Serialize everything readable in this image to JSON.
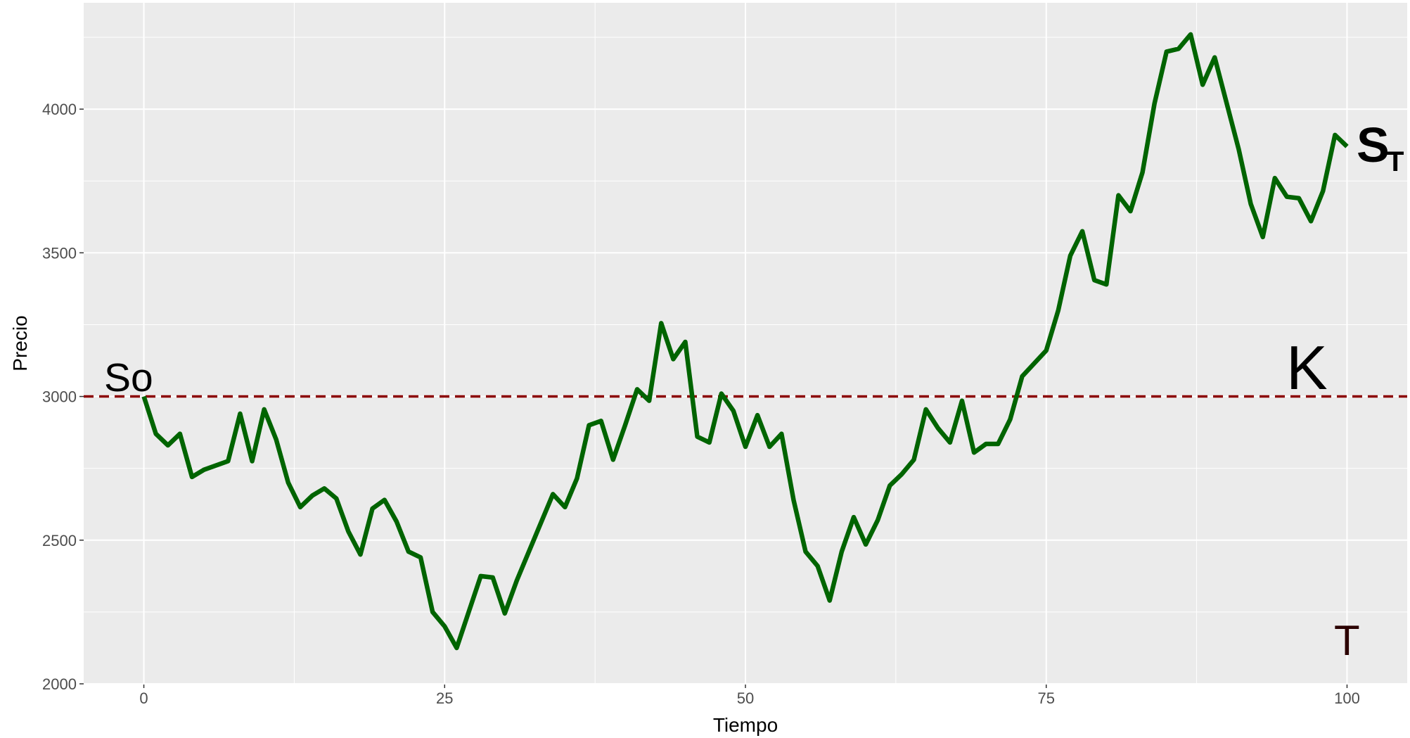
{
  "chart_data": {
    "type": "line",
    "x_label": "Tiempo",
    "y_label": "Precio",
    "xlim": [
      -5,
      105
    ],
    "xticks": [
      0,
      25,
      50,
      75,
      100
    ],
    "ylim": [
      2000,
      4370
    ],
    "yticks": [
      2000,
      2500,
      3000,
      3500,
      4000
    ],
    "grid": true,
    "x": [
      0,
      1,
      2,
      3,
      4,
      5,
      6,
      7,
      8,
      9,
      10,
      11,
      12,
      13,
      14,
      15,
      16,
      17,
      18,
      19,
      20,
      21,
      22,
      23,
      24,
      25,
      26,
      27,
      28,
      29,
      30,
      31,
      32,
      33,
      34,
      35,
      36,
      37,
      38,
      39,
      40,
      41,
      42,
      43,
      44,
      45,
      46,
      47,
      48,
      49,
      50,
      51,
      52,
      53,
      54,
      55,
      56,
      57,
      58,
      59,
      60,
      61,
      62,
      63,
      64,
      65,
      66,
      67,
      68,
      69,
      70,
      71,
      72,
      73,
      74,
      75,
      76,
      77,
      78,
      79,
      80,
      81,
      82,
      83,
      84,
      85,
      86,
      87,
      88,
      89,
      90,
      91,
      92,
      93,
      94,
      95,
      96,
      97,
      98,
      99,
      100
    ],
    "series": [
      {
        "color": "#006400",
        "values": [
          3000,
          2870,
          2830,
          2870,
          2720,
          2745,
          2760,
          2775,
          2940,
          2775,
          2955,
          2850,
          2700,
          2615,
          2655,
          2680,
          2645,
          2530,
          2450,
          2610,
          2640,
          2565,
          2460,
          2440,
          2250,
          2200,
          2125,
          2250,
          2375,
          2370,
          2245,
          2360,
          2460,
          2560,
          2660,
          2615,
          2715,
          2900,
          2915,
          2780,
          2900,
          3025,
          2985,
          3255,
          3130,
          3190,
          2860,
          2840,
          3010,
          2950,
          2825,
          2935,
          2825,
          2870,
          2640,
          2460,
          2410,
          2290,
          2460,
          2580,
          2485,
          2570,
          2690,
          2730,
          2780,
          2955,
          2890,
          2840,
          2985,
          2805,
          2835,
          2835,
          2920,
          3070,
          3115,
          3160,
          3300,
          3490,
          3575,
          3405,
          3390,
          3700,
          3645,
          3780,
          4020,
          4200,
          4210,
          4260,
          4085,
          4180,
          4020,
          3860,
          3670,
          3555,
          3760,
          3695,
          3690,
          3610,
          3715,
          3910,
          3870
        ]
      }
    ],
    "hline": {
      "value": 3000,
      "color": "#8b0000"
    },
    "annotations": [
      {
        "text": "So"
      },
      {
        "text": "K"
      },
      {
        "text": "T"
      },
      {
        "text": "S",
        "subscript": "T"
      }
    ]
  }
}
